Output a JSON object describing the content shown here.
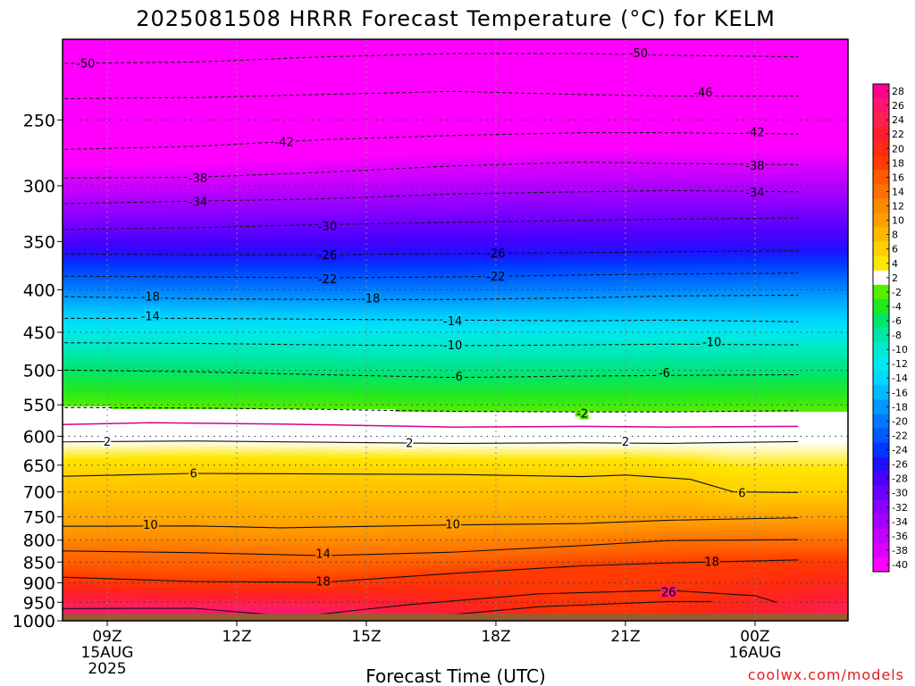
{
  "title": "2025081508 HRRR Forecast Temperature (°C) for KELM",
  "xlabel": "Forecast Time (UTC)",
  "credit": "coolwx.com/models",
  "colors": {
    "ground": "#9a5b30"
  },
  "chart_data": {
    "type": "heatmap",
    "title": "2025081508 HRRR Forecast Temperature (°C) for KELM",
    "xlabel": "Forecast Time (UTC)",
    "ylabel": "",
    "x_hours_since_08z": [
      0,
      16
    ],
    "y_pressure_hpa": [
      1000,
      200
    ],
    "y_scale": "log",
    "grid": true,
    "legend_position": "right",
    "x_ticks": [
      {
        "h": 1,
        "lines": [
          "09Z",
          "15AUG",
          "2025"
        ]
      },
      {
        "h": 4,
        "lines": [
          "12Z"
        ]
      },
      {
        "h": 7,
        "lines": [
          "15Z"
        ]
      },
      {
        "h": 10,
        "lines": [
          "18Z"
        ]
      },
      {
        "h": 13,
        "lines": [
          "21Z"
        ]
      },
      {
        "h": 16,
        "lines": [
          "00Z",
          "16AUG"
        ]
      }
    ],
    "y_ticks": [
      250,
      300,
      350,
      400,
      450,
      500,
      550,
      600,
      650,
      700,
      750,
      800,
      850,
      900,
      950,
      1000
    ],
    "surface_pressure_hpa": 981,
    "colorbar_levels": [
      28,
      26,
      24,
      22,
      20,
      18,
      16,
      14,
      12,
      10,
      8,
      6,
      4,
      2,
      -2,
      -4,
      -6,
      -8,
      -10,
      -12,
      -14,
      -16,
      -18,
      -20,
      -22,
      -24,
      -26,
      -28,
      -30,
      -32,
      -34,
      -36,
      -38,
      -40
    ],
    "colorbar_colors": [
      "#ff0090",
      "#ff1670",
      "#ff2050",
      "#ff1e30",
      "#ff2a10",
      "#ff3c00",
      "#ff5a00",
      "#ff7000",
      "#ff8a00",
      "#ffa000",
      "#ffb800",
      "#ffd000",
      "#ffe600",
      "#ffffff",
      "#55ee00",
      "#22e822",
      "#00e66a",
      "#00e6a0",
      "#00eacd",
      "#00e8ee",
      "#00d8ff",
      "#00bbff",
      "#0099ff",
      "#0078ff",
      "#0058ff",
      "#0036ff",
      "#2010ff",
      "#4a00ff",
      "#6a00ff",
      "#8a00ff",
      "#a500ff",
      "#c400ff",
      "#dd00ff",
      "#ff00ff"
    ],
    "isotherms": [
      {
        "label": "-50",
        "dashed": true,
        "p": [
          [
            -1,
            214
          ],
          [
            3,
            213
          ],
          [
            6,
            210
          ],
          [
            9,
            208
          ],
          [
            12,
            208
          ],
          [
            14,
            209
          ],
          [
            17,
            210
          ]
        ],
        "labels": [
          [
            0.5,
            214
          ],
          [
            13.3,
            208
          ]
        ]
      },
      {
        "label": "-46",
        "dashed": true,
        "p": [
          [
            -1,
            236
          ],
          [
            3,
            235
          ],
          [
            6,
            233
          ],
          [
            9,
            231
          ],
          [
            12,
            233
          ],
          [
            14,
            234
          ],
          [
            17,
            234
          ]
        ],
        "labels": [
          [
            14.8,
            232
          ]
        ]
      },
      {
        "label": "-42",
        "dashed": true,
        "p": [
          [
            -1,
            272
          ],
          [
            3,
            269
          ],
          [
            6,
            264
          ],
          [
            9,
            261
          ],
          [
            12,
            259
          ],
          [
            14,
            259
          ],
          [
            17,
            260
          ]
        ],
        "labels": [
          [
            5.1,
            266
          ],
          [
            16,
            259
          ]
        ]
      },
      {
        "label": "-38",
        "dashed": true,
        "p": [
          [
            -1,
            294
          ],
          [
            3,
            293
          ],
          [
            6,
            289
          ],
          [
            9,
            284
          ],
          [
            12,
            281
          ],
          [
            14,
            282
          ],
          [
            17,
            283
          ]
        ],
        "labels": [
          [
            3.1,
            294
          ],
          [
            16,
            284
          ]
        ]
      },
      {
        "label": "-34",
        "dashed": true,
        "p": [
          [
            -1,
            316
          ],
          [
            3,
            313
          ],
          [
            6,
            311
          ],
          [
            9,
            307
          ],
          [
            12,
            305
          ],
          [
            14,
            304
          ],
          [
            17,
            305
          ]
        ],
        "labels": [
          [
            3.1,
            314
          ],
          [
            16,
            306
          ]
        ]
      },
      {
        "label": "-30",
        "dashed": true,
        "p": [
          [
            -1,
            339
          ],
          [
            3,
            337
          ],
          [
            6,
            334
          ],
          [
            9,
            332
          ],
          [
            12,
            330
          ],
          [
            14,
            329
          ],
          [
            17,
            328
          ]
        ],
        "labels": [
          [
            6.1,
            336
          ]
        ]
      },
      {
        "label": "-26",
        "dashed": true,
        "p": [
          [
            -1,
            362
          ],
          [
            3,
            363
          ],
          [
            6,
            363
          ],
          [
            9,
            362
          ],
          [
            12,
            361
          ],
          [
            14,
            360
          ],
          [
            17,
            359
          ]
        ],
        "labels": [
          [
            6.1,
            364
          ],
          [
            10,
            362
          ]
        ]
      },
      {
        "label": "-22",
        "dashed": true,
        "p": [
          [
            -1,
            385
          ],
          [
            3,
            386
          ],
          [
            6,
            387
          ],
          [
            9,
            386
          ],
          [
            12,
            384
          ],
          [
            14,
            383
          ],
          [
            17,
            382
          ]
        ],
        "labels": [
          [
            6.1,
            389
          ],
          [
            10,
            386
          ]
        ]
      },
      {
        "label": "-18",
        "dashed": true,
        "p": [
          [
            -1,
            407
          ],
          [
            3,
            410
          ],
          [
            6,
            411
          ],
          [
            9,
            411
          ],
          [
            12,
            409
          ],
          [
            14,
            407
          ],
          [
            17,
            406
          ]
        ],
        "labels": [
          [
            2,
            408
          ],
          [
            7.1,
            410
          ]
        ]
      },
      {
        "label": "-14",
        "dashed": true,
        "p": [
          [
            -1,
            433
          ],
          [
            3,
            433
          ],
          [
            6,
            434
          ],
          [
            9,
            435
          ],
          [
            12,
            436
          ],
          [
            14,
            435
          ],
          [
            17,
            437
          ]
        ],
        "labels": [
          [
            2,
            431
          ],
          [
            9,
            437
          ]
        ]
      },
      {
        "label": "-10",
        "dashed": true,
        "p": [
          [
            -1,
            463
          ],
          [
            3,
            464
          ],
          [
            6,
            466
          ],
          [
            9,
            467
          ],
          [
            12,
            466
          ],
          [
            14,
            465
          ],
          [
            17,
            466
          ]
        ],
        "labels": [
          [
            9,
            467
          ],
          [
            15,
            463
          ]
        ]
      },
      {
        "label": "-6",
        "dashed": true,
        "p": [
          [
            -1,
            499
          ],
          [
            3,
            502
          ],
          [
            6,
            506
          ],
          [
            9,
            510
          ],
          [
            12,
            508
          ],
          [
            14,
            507
          ],
          [
            17,
            506
          ]
        ],
        "labels": [
          [
            9.1,
            509
          ],
          [
            13.9,
            504
          ]
        ]
      },
      {
        "label": "-2",
        "dashed": true,
        "p": [
          [
            -1,
            554
          ],
          [
            3,
            555
          ],
          [
            6,
            557
          ],
          [
            9,
            560
          ],
          [
            12,
            561
          ],
          [
            14,
            561
          ],
          [
            17,
            559
          ]
        ],
        "labels": [
          [
            12,
            564
          ]
        ]
      },
      {
        "label": "",
        "dashed": false,
        "color": "#d60090",
        "p": [
          [
            -1,
            582
          ],
          [
            2,
            578
          ],
          [
            5,
            580
          ],
          [
            9,
            585
          ],
          [
            12,
            584
          ],
          [
            14,
            585
          ],
          [
            17,
            584
          ]
        ],
        "labels": []
      },
      {
        "label": "2",
        "dashed": false,
        "p": [
          [
            -1,
            610
          ],
          [
            3,
            608
          ],
          [
            6,
            610
          ],
          [
            9,
            612
          ],
          [
            12,
            611
          ],
          [
            14,
            612
          ],
          [
            17,
            609
          ]
        ],
        "labels": [
          [
            1,
            610
          ],
          [
            8,
            612
          ],
          [
            13,
            610
          ]
        ]
      },
      {
        "label": "6",
        "dashed": false,
        "p": [
          [
            -1,
            672
          ],
          [
            3,
            665
          ],
          [
            6,
            666
          ],
          [
            9,
            667
          ],
          [
            12,
            671
          ],
          [
            13,
            668
          ],
          [
            14.5,
            676
          ],
          [
            15.5,
            700
          ],
          [
            17,
            701
          ]
        ],
        "labels": [
          [
            3,
            666
          ],
          [
            15.7,
            703
          ]
        ]
      },
      {
        "label": "10",
        "dashed": false,
        "p": [
          [
            -1,
            770
          ],
          [
            3,
            769
          ],
          [
            5,
            773
          ],
          [
            7,
            770
          ],
          [
            9,
            767
          ],
          [
            12,
            764
          ],
          [
            14,
            757
          ],
          [
            17,
            752
          ]
        ],
        "labels": [
          [
            2,
            768
          ],
          [
            9,
            767
          ]
        ]
      },
      {
        "label": "14",
        "dashed": false,
        "p": [
          [
            -1,
            823
          ],
          [
            3,
            828
          ],
          [
            6,
            835
          ],
          [
            9,
            827
          ],
          [
            12,
            812
          ],
          [
            14,
            801
          ],
          [
            17,
            799
          ]
        ],
        "labels": [
          [
            6,
            832
          ]
        ]
      },
      {
        "label": "18",
        "dashed": false,
        "p": [
          [
            -1,
            883
          ],
          [
            3,
            897
          ],
          [
            6,
            899
          ],
          [
            9,
            877
          ],
          [
            12,
            859
          ],
          [
            14,
            852
          ],
          [
            17,
            845
          ]
        ],
        "labels": [
          [
            6,
            898
          ],
          [
            15,
            851
          ]
        ]
      },
      {
        "label": "26",
        "dashed": false,
        "p": [
          [
            5.6,
            986
          ],
          [
            8,
            956
          ],
          [
            11,
            928
          ],
          [
            14,
            919
          ],
          [
            16,
            933
          ],
          [
            16.5,
            950
          ]
        ],
        "labels": [
          [
            14,
            925
          ]
        ]
      },
      {
        "label": "",
        "dashed": false,
        "p": [
          [
            -1,
            967
          ],
          [
            3,
            966
          ],
          [
            5,
            985
          ]
        ],
        "labels": []
      },
      {
        "label": "",
        "dashed": false,
        "p": [
          [
            8.3,
            990
          ],
          [
            11,
            962
          ],
          [
            14,
            948
          ],
          [
            15,
            948
          ]
        ],
        "labels": []
      }
    ]
  }
}
